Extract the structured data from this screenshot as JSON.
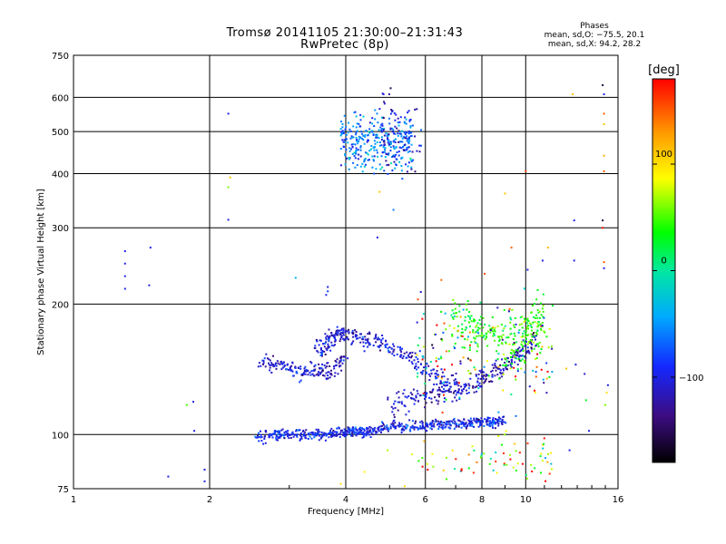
{
  "chart_data": {
    "type": "scatter",
    "title": "Tromsø 20141105 21:30:00–21:31:43",
    "subtitle": "RwPretec (8p)",
    "xlabel": "Frequency [MHz]",
    "ylabel": "Stationary phase Virtual Height [km]",
    "x_scale": "log",
    "y_scale": "log",
    "xlim": [
      1,
      16
    ],
    "ylim": [
      75,
      750
    ],
    "x_ticks": [
      1,
      2,
      4,
      6,
      8,
      10,
      16
    ],
    "y_ticks": [
      75,
      100,
      200,
      300,
      400,
      500,
      600,
      750
    ],
    "x_tick_labels": [
      "1",
      "2",
      "4",
      "6",
      "8",
      "10",
      "16"
    ],
    "y_tick_labels": [
      "75",
      "100",
      "200",
      "300",
      "400",
      "500",
      "600",
      "750"
    ],
    "grid": true,
    "stats": {
      "header": "Phases",
      "line_o": "mean, sd,O: −75.5, 20.1",
      "line_x": "mean, sd,X:  94.2, 28.2"
    },
    "colorbar": {
      "label": "[deg]",
      "range": [
        -180,
        180
      ],
      "ticks": [
        -100,
        0,
        100
      ],
      "tick_labels": [
        "−100",
        "0",
        "100"
      ]
    },
    "traces": [
      {
        "f": [
          2.55,
          2.8,
          3.0,
          3.3,
          3.6,
          3.9,
          4.1,
          4.3,
          4.6,
          5.0,
          5.5,
          6.0,
          6.5,
          7.0,
          7.5,
          8.0,
          8.5,
          9.0
        ],
        "h": [
          99,
          100,
          100,
          100,
          100,
          101,
          102,
          101,
          102,
          104,
          104,
          105,
          105,
          106,
          106,
          107,
          107,
          108
        ],
        "phase": -95,
        "spread_h": 1.5,
        "n": 3
      },
      {
        "f": [
          2.6,
          2.8,
          3.0,
          3.2,
          3.4,
          3.6,
          3.8,
          4.0
        ],
        "h": [
          148,
          145,
          142,
          140,
          139,
          140,
          143,
          150
        ],
        "phase": -110,
        "spread_h": 3,
        "n": 2
      },
      {
        "f": [
          3.45,
          3.6,
          3.7,
          3.85,
          4.0,
          4.2,
          4.5,
          4.8,
          5.2,
          5.6,
          6.0,
          6.5,
          7.0
        ],
        "h": [
          157,
          160,
          166,
          172,
          170,
          168,
          166,
          163,
          158,
          150,
          142,
          135,
          128
        ],
        "phase": -105,
        "spread_h": 4,
        "n": 2
      },
      {
        "f": [
          5.0,
          5.5,
          6.0,
          6.5,
          7.0,
          7.5,
          8.0,
          8.5,
          9.0,
          9.5,
          10.0,
          10.5
        ],
        "h": [
          118,
          120,
          122,
          124,
          127,
          130,
          134,
          138,
          144,
          150,
          158,
          168
        ],
        "phase": -115,
        "spread_h": 4,
        "n": 2
      },
      {
        "f": [
          6.8,
          7.5,
          8.0,
          8.8,
          9.5,
          10.0,
          10.5,
          11.0
        ],
        "h": [
          180,
          178,
          175,
          170,
          168,
          172,
          178,
          185
        ],
        "phase": 40,
        "spread_h": 12,
        "n": 3
      }
    ],
    "clusters": [
      {
        "f_range": [
          3.9,
          5.6
        ],
        "h_range": [
          400,
          560
        ],
        "n": 320,
        "phase_mean": -60,
        "phase_sd": 25
      },
      {
        "f_range": [
          4.8,
          5.9
        ],
        "h_range": [
          390,
          640
        ],
        "n": 70,
        "phase_mean": -110,
        "phase_sd": 20
      },
      {
        "f_range": [
          5.7,
          11.5
        ],
        "h_range": [
          110,
          220
        ],
        "n": 160,
        "phase_mean": 20,
        "phase_sd": 110
      },
      {
        "f_range": [
          5.8,
          11.5
        ],
        "h_range": [
          76,
          100
        ],
        "n": 70,
        "phase_mean": 90,
        "phase_sd": 60
      }
    ],
    "points": [
      {
        "f": 1.3,
        "h": 265,
        "phase": -100
      },
      {
        "f": 1.3,
        "h": 248,
        "phase": -100
      },
      {
        "f": 1.3,
        "h": 232,
        "phase": -100
      },
      {
        "f": 1.3,
        "h": 217,
        "phase": -100
      },
      {
        "f": 1.48,
        "h": 270,
        "phase": -100
      },
      {
        "f": 1.47,
        "h": 221,
        "phase": -100
      },
      {
        "f": 1.62,
        "h": 80,
        "phase": -100
      },
      {
        "f": 1.78,
        "h": 117,
        "phase": 50
      },
      {
        "f": 1.84,
        "h": 119,
        "phase": -100
      },
      {
        "f": 1.95,
        "h": 78,
        "phase": -100
      },
      {
        "f": 1.95,
        "h": 83,
        "phase": -100
      },
      {
        "f": 2.2,
        "h": 550,
        "phase": -100
      },
      {
        "f": 2.2,
        "h": 372,
        "phase": 60
      },
      {
        "f": 2.22,
        "h": 392,
        "phase": 110
      },
      {
        "f": 2.2,
        "h": 313,
        "phase": -100
      },
      {
        "f": 1.85,
        "h": 102,
        "phase": -100
      },
      {
        "f": 3.1,
        "h": 230,
        "phase": -40
      },
      {
        "f": 3.65,
        "h": 219,
        "phase": -100
      },
      {
        "f": 3.65,
        "h": 214,
        "phase": -80
      },
      {
        "f": 3.62,
        "h": 210,
        "phase": -100
      },
      {
        "f": 4.7,
        "h": 285,
        "phase": -100
      },
      {
        "f": 4.75,
        "h": 363,
        "phase": 110
      },
      {
        "f": 5.1,
        "h": 330,
        "phase": -60
      },
      {
        "f": 9.3,
        "h": 270,
        "phase": 150
      },
      {
        "f": 9.0,
        "h": 360,
        "phase": 110
      },
      {
        "f": 10.0,
        "h": 405,
        "phase": 160
      },
      {
        "f": 10.1,
        "h": 240,
        "phase": -100
      },
      {
        "f": 10.9,
        "h": 252,
        "phase": -100
      },
      {
        "f": 11.2,
        "h": 270,
        "phase": 120
      },
      {
        "f": 12.7,
        "h": 610,
        "phase": 110
      },
      {
        "f": 12.8,
        "h": 312,
        "phase": -100
      },
      {
        "f": 12.8,
        "h": 252,
        "phase": -100
      },
      {
        "f": 14.8,
        "h": 640,
        "phase": -160
      },
      {
        "f": 14.9,
        "h": 610,
        "phase": -100
      },
      {
        "f": 14.9,
        "h": 550,
        "phase": 150
      },
      {
        "f": 14.9,
        "h": 520,
        "phase": 110
      },
      {
        "f": 14.9,
        "h": 440,
        "phase": 120
      },
      {
        "f": 14.9,
        "h": 405,
        "phase": 150
      },
      {
        "f": 14.8,
        "h": 312,
        "phase": -160
      },
      {
        "f": 14.8,
        "h": 300,
        "phase": 170
      },
      {
        "f": 14.9,
        "h": 250,
        "phase": 150
      },
      {
        "f": 14.9,
        "h": 242,
        "phase": -100
      },
      {
        "f": 15.0,
        "h": 117,
        "phase": 60
      },
      {
        "f": 15.1,
        "h": 125,
        "phase": 100
      },
      {
        "f": 15.2,
        "h": 130,
        "phase": -100
      },
      {
        "f": 13.5,
        "h": 138,
        "phase": -110
      },
      {
        "f": 12.9,
        "h": 145,
        "phase": -100
      },
      {
        "f": 12.3,
        "h": 142,
        "phase": 110
      },
      {
        "f": 13.6,
        "h": 120,
        "phase": 30
      },
      {
        "f": 12.5,
        "h": 92,
        "phase": -100
      },
      {
        "f": 13.8,
        "h": 102,
        "phase": -100
      },
      {
        "f": 5.6,
        "h": 90,
        "phase": 80
      },
      {
        "f": 4.4,
        "h": 82,
        "phase": 90
      },
      {
        "f": 3.9,
        "h": 77,
        "phase": 100
      },
      {
        "f": 4.95,
        "h": 92,
        "phase": 70
      },
      {
        "f": 5.4,
        "h": 76,
        "phase": 100
      }
    ]
  }
}
